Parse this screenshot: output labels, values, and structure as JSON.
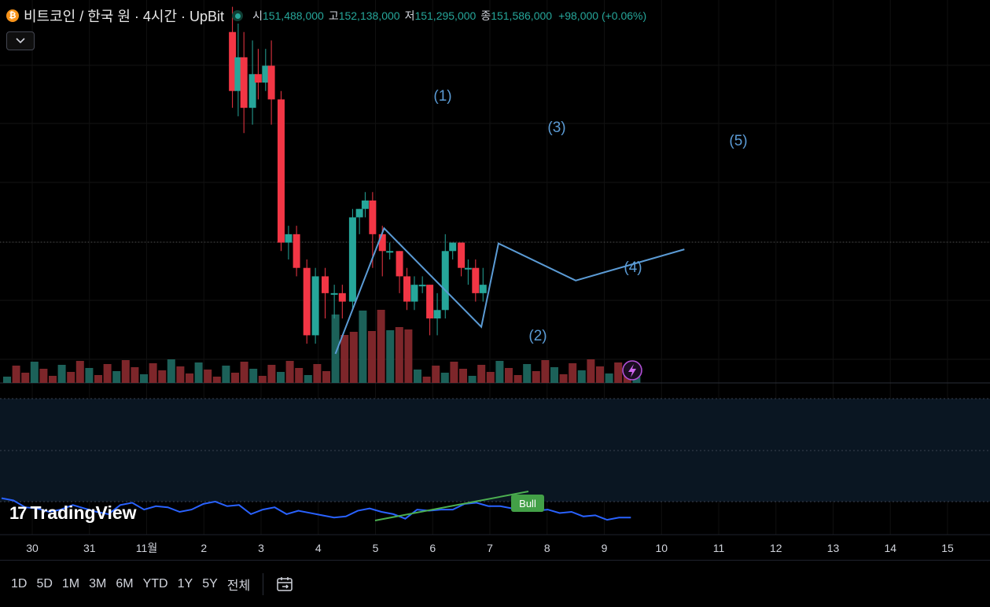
{
  "header": {
    "coin_icon": "bitcoin-icon",
    "title": "비트코인 / 한국 원 · 4시간 · UpBit",
    "open_label": "시",
    "open": "151,488,000",
    "high_label": "고",
    "high": "152,138,000",
    "low_label": "저",
    "low": "151,295,000",
    "close_label": "종",
    "close": "151,586,000",
    "change": "+98,000 (+0.06%)",
    "collapse_icon": "chevron-down-icon"
  },
  "logo": {
    "mark": "17",
    "text": "TradingView"
  },
  "toolbar": {
    "timeframes": [
      "1D",
      "5D",
      "1M",
      "3M",
      "6M",
      "YTD",
      "1Y",
      "5Y",
      "전체"
    ],
    "calendar_icon": "calendar-goto-icon"
  },
  "colors": {
    "up": "#26a69a",
    "down": "#f23645",
    "wave": "#5b9bd5",
    "rsi": "#2962ff",
    "divergence": "#4caf50",
    "background": "#000000"
  },
  "chart_data": {
    "type": "candlestick",
    "x_ticks": [
      "30",
      "31",
      "11월",
      "2",
      "3",
      "4",
      "5",
      "6",
      "7",
      "8",
      "9",
      "10",
      "11",
      "12",
      "13",
      "14",
      "15"
    ],
    "wave_labels": [
      "(1)",
      "(2)",
      "(3)",
      "(4)",
      "(5)"
    ],
    "wave_points": [
      [
        5.3,
        126.8
      ],
      [
        6.15,
        141.7
      ],
      [
        7.85,
        130.0
      ],
      [
        8.15,
        139.9
      ],
      [
        9.5,
        135.5
      ],
      [
        11.4,
        139.2
      ]
    ],
    "candles": [
      [
        3.5,
        165,
        158,
        168,
        156
      ],
      [
        3.6,
        158,
        162,
        166,
        155
      ],
      [
        3.7,
        162,
        156,
        165,
        153
      ],
      [
        3.85,
        156,
        160,
        164,
        154
      ],
      [
        3.95,
        160,
        159,
        163,
        157
      ],
      [
        4.08,
        159,
        161,
        163,
        158
      ],
      [
        4.18,
        161,
        157,
        164,
        154
      ],
      [
        4.35,
        157,
        140,
        158,
        139
      ],
      [
        4.48,
        140,
        141,
        142,
        138
      ],
      [
        4.62,
        141,
        137,
        142,
        136
      ],
      [
        4.8,
        137,
        129,
        138,
        128
      ],
      [
        4.95,
        129,
        136,
        137,
        128
      ],
      [
        5.12,
        136,
        134,
        137,
        131
      ],
      [
        5.28,
        134,
        134,
        135,
        131
      ],
      [
        5.42,
        134,
        133,
        135,
        131
      ],
      [
        5.6,
        133,
        143,
        144,
        132
      ],
      [
        5.72,
        143,
        144,
        144,
        141
      ],
      [
        5.82,
        144,
        145,
        146,
        143
      ],
      [
        5.95,
        145,
        141,
        146,
        137
      ],
      [
        6.12,
        141,
        139,
        142,
        136
      ],
      [
        6.25,
        139,
        139,
        140,
        138
      ],
      [
        6.42,
        139,
        136,
        139,
        134
      ],
      [
        6.55,
        136,
        133,
        137,
        132
      ],
      [
        6.68,
        133,
        135,
        136,
        132
      ],
      [
        6.82,
        135,
        135,
        136,
        134
      ],
      [
        6.95,
        135,
        131,
        135,
        129
      ],
      [
        7.08,
        131,
        132,
        134,
        129
      ],
      [
        7.22,
        132,
        139,
        141,
        131
      ],
      [
        7.35,
        139,
        140,
        140,
        138
      ],
      [
        7.5,
        140,
        137,
        140,
        136
      ],
      [
        7.62,
        137,
        137,
        138,
        135
      ],
      [
        7.75,
        137,
        134,
        138,
        133
      ],
      [
        7.88,
        134,
        135,
        137,
        133
      ]
    ],
    "volume_labels": "volume bars (relative)",
    "rsi": {
      "values": [
        72,
        70,
        64,
        63,
        60,
        62,
        66,
        63,
        60,
        58,
        66,
        68,
        62,
        65,
        64,
        60,
        62,
        67,
        69,
        65,
        66,
        58,
        62,
        64,
        58,
        61,
        59,
        57,
        55,
        56,
        61,
        63,
        60,
        58,
        54,
        62,
        61,
        62,
        62,
        67,
        68,
        65,
        65,
        63,
        64,
        61,
        62,
        59,
        60,
        56,
        57,
        53,
        55,
        55
      ],
      "divergence_label": "Bull"
    },
    "ylim": [
      124,
      166
    ]
  }
}
